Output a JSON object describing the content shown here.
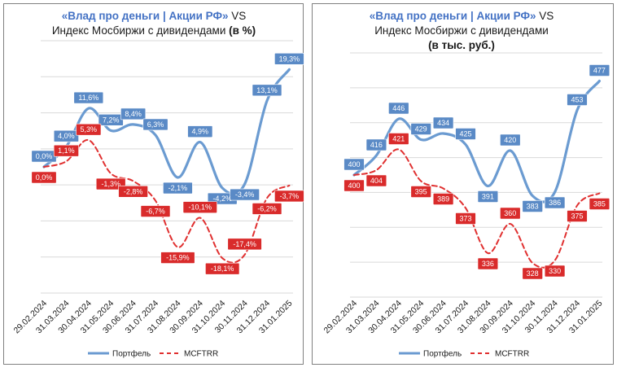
{
  "chart_data": [
    {
      "type": "line",
      "title_accent": "«Влад про деньги | Акции РФ»",
      "title_vs": " VS",
      "subtitle_plain": "Индекс Мосбиржи с дивидендами ",
      "subtitle_bold": "(в %)",
      "unit_line": "",
      "categories": [
        "29.02.2024",
        "31.03.2024",
        "30.04.2024",
        "31.05.2024",
        "30.06.2024",
        "31.07.2024",
        "31.08.2024",
        "30.09.2024",
        "31.10.2024",
        "30.11.2024",
        "31.12.2024",
        "31.01.2025"
      ],
      "series": [
        {
          "name": "Портфель",
          "color": "#6b9bd1",
          "label_bg": "#5a8ac6",
          "style": "solid",
          "values": [
            0.0,
            4.0,
            11.6,
            7.2,
            8.4,
            6.3,
            -2.1,
            4.9,
            -4.2,
            -3.4,
            13.1,
            19.3
          ],
          "labels": [
            "0,0%",
            "4,0%",
            "11,6%",
            "7,2%",
            "8,4%",
            "6,3%",
            "-2,1%",
            "4,9%",
            "-4,2%",
            "-3,4%",
            "13,1%",
            "19,3%"
          ]
        },
        {
          "name": "MCFTRR",
          "color": "#e03030",
          "label_bg": "#d92b2b",
          "style": "dashed",
          "values": [
            0.0,
            1.1,
            5.3,
            -1.3,
            -2.8,
            -6.7,
            -15.9,
            -10.1,
            -18.1,
            -17.4,
            -6.2,
            -3.7
          ],
          "labels": [
            "0,0%",
            "1,1%",
            "5,3%",
            "-1,3%",
            "-2,8%",
            "-6,7%",
            "-15,9%",
            "-10,1%",
            "-18,1%",
            "-17,4%",
            "-6,2%",
            "-3,7%"
          ]
        }
      ],
      "ylim": [
        -25,
        25
      ],
      "grid": true,
      "legend": "bottom"
    },
    {
      "type": "line",
      "title_accent": "«Влад про деньги | Акции РФ»",
      "title_vs": " VS",
      "subtitle_plain": "Индекс Мосбиржи с дивидендами",
      "subtitle_bold": "",
      "unit_line": "(в тыс. руб.)",
      "categories": [
        "29.02.2024",
        "31.03.2024",
        "30.04.2024",
        "31.05.2024",
        "30.06.2024",
        "31.07.2024",
        "31.08.2024",
        "30.09.2024",
        "31.10.2024",
        "30.11.2024",
        "31.12.2024",
        "31.01.2025"
      ],
      "series": [
        {
          "name": "Портфель",
          "color": "#6b9bd1",
          "label_bg": "#5a8ac6",
          "style": "solid",
          "values": [
            400,
            416,
            446,
            429,
            434,
            425,
            391,
            420,
            383,
            386,
            453,
            477
          ],
          "labels": [
            "400",
            "416",
            "446",
            "429",
            "434",
            "425",
            "391",
            "420",
            "383",
            "386",
            "453",
            "477"
          ]
        },
        {
          "name": "MCFTRR",
          "color": "#e03030",
          "label_bg": "#d92b2b",
          "style": "dashed",
          "values": [
            400,
            404,
            421,
            395,
            389,
            373,
            336,
            360,
            328,
            330,
            375,
            385
          ],
          "labels": [
            "400",
            "404",
            "421",
            "395",
            "389",
            "373",
            "336",
            "360",
            "328",
            "330",
            "375",
            "385"
          ]
        }
      ],
      "ylim": [
        300,
        500
      ],
      "grid": true,
      "legend": "bottom"
    }
  ]
}
